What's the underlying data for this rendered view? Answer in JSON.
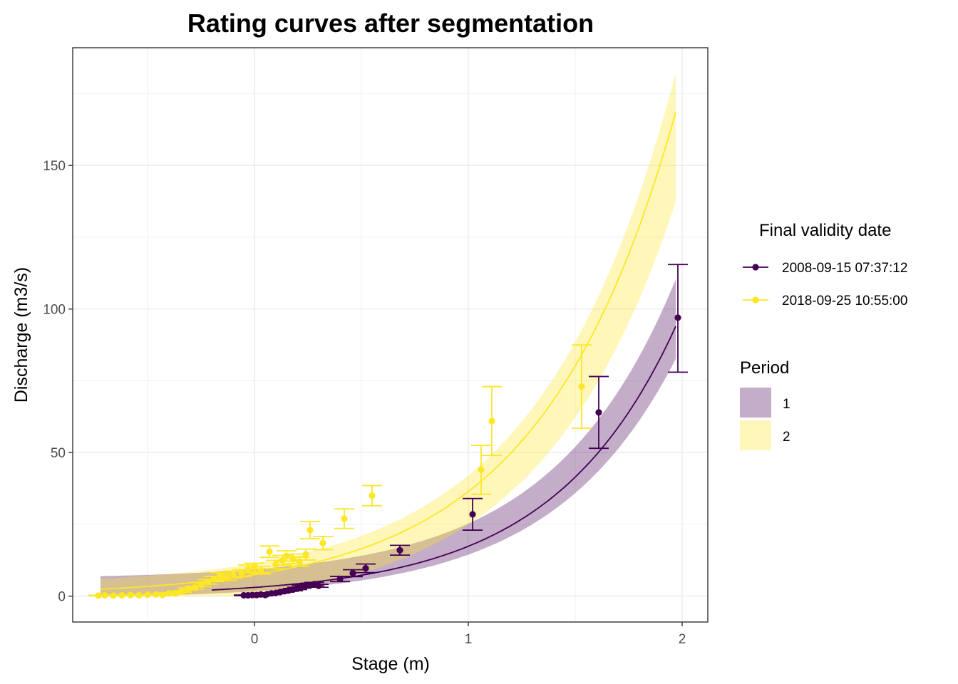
{
  "chart_data": {
    "type": "scatter",
    "title": "Rating curves after segmentation",
    "xlabel": "Stage (m)",
    "ylabel": "Discharge (m3/s)",
    "xlim": [
      -0.85,
      2.12
    ],
    "ylim": [
      -9,
      191
    ],
    "x_ticks": [
      0,
      1,
      2
    ],
    "x_tick_labels": [
      "0",
      "1",
      "2"
    ],
    "y_ticks": [
      0,
      50,
      100,
      150
    ],
    "y_tick_labels": [
      "0",
      "50",
      "100",
      "150"
    ],
    "grid": true,
    "legend_position": "right",
    "legend_colour_title": "Final validity date",
    "legend_fill_title": "Period",
    "series": [
      {
        "name": "2008-09-15 07:37:12",
        "period": "1",
        "color": "#440154",
        "band_fill": "#440154",
        "curve": {
          "type": "exponential",
          "a": 3.05,
          "b": 1.74,
          "x_start": -0.2,
          "x_end": 1.97
        },
        "band": {
          "lower_factor": 0.89,
          "upper_factor": 1.11,
          "plus_lower": -1.0,
          "plus_upper": 6.0,
          "x_start": -0.72,
          "x_end": 1.97
        },
        "points": [
          {
            "x": -0.05,
            "y": 0.3,
            "lo": 0.2,
            "hi": 0.4
          },
          {
            "x": -0.03,
            "y": 0.3,
            "lo": 0.2,
            "hi": 0.4
          },
          {
            "x": -0.01,
            "y": 0.4,
            "lo": 0.3,
            "hi": 0.5
          },
          {
            "x": 0.01,
            "y": 0.4,
            "lo": 0.3,
            "hi": 0.5
          },
          {
            "x": 0.03,
            "y": 0.6,
            "lo": 0.4,
            "hi": 0.8
          },
          {
            "x": 0.05,
            "y": 0.4,
            "lo": 0.3,
            "hi": 0.5
          },
          {
            "x": 0.06,
            "y": 0.7,
            "lo": 0.5,
            "hi": 0.9
          },
          {
            "x": 0.08,
            "y": 1.0,
            "lo": 0.8,
            "hi": 1.2
          },
          {
            "x": 0.1,
            "y": 1.1,
            "lo": 0.9,
            "hi": 1.3
          },
          {
            "x": 0.12,
            "y": 1.4,
            "lo": 1.1,
            "hi": 1.7
          },
          {
            "x": 0.14,
            "y": 1.7,
            "lo": 1.4,
            "hi": 2.0
          },
          {
            "x": 0.16,
            "y": 2.0,
            "lo": 1.7,
            "hi": 2.3
          },
          {
            "x": 0.18,
            "y": 2.3,
            "lo": 1.9,
            "hi": 2.7
          },
          {
            "x": 0.2,
            "y": 2.7,
            "lo": 2.3,
            "hi": 3.1
          },
          {
            "x": 0.22,
            "y": 3.3,
            "lo": 2.8,
            "hi": 3.8
          },
          {
            "x": 0.24,
            "y": 3.7,
            "lo": 3.2,
            "hi": 4.2
          },
          {
            "x": 0.26,
            "y": 3.9,
            "lo": 3.3,
            "hi": 4.5
          },
          {
            "x": 0.28,
            "y": 4.2,
            "lo": 3.6,
            "hi": 4.8
          },
          {
            "x": 0.3,
            "y": 3.6,
            "lo": 3.1,
            "hi": 4.1
          },
          {
            "x": 0.4,
            "y": 6.0,
            "lo": 5.1,
            "hi": 6.9
          },
          {
            "x": 0.46,
            "y": 8.0,
            "lo": 6.8,
            "hi": 9.2
          },
          {
            "x": 0.52,
            "y": 9.7,
            "lo": 8.2,
            "hi": 11.2
          },
          {
            "x": 0.68,
            "y": 16.0,
            "lo": 14.3,
            "hi": 17.7
          },
          {
            "x": 1.02,
            "y": 28.5,
            "lo": 23.0,
            "hi": 34.0
          },
          {
            "x": 1.61,
            "y": 64.0,
            "lo": 51.5,
            "hi": 76.5
          },
          {
            "x": 1.98,
            "y": 97.0,
            "lo": 78.0,
            "hi": 115.5
          }
        ]
      },
      {
        "name": "2018-09-25 10:55:00",
        "period": "2",
        "color": "#FDE725",
        "band_fill": "#FDE725",
        "curve": {
          "type": "exponential",
          "a": 7.5,
          "b": 1.58,
          "x_start": -0.72,
          "x_end": 1.97
        },
        "band": {
          "lower_factor": 0.85,
          "upper_factor": 1.06,
          "plus_lower": -6.0,
          "plus_upper": 3.5,
          "x_start": -0.72,
          "x_end": 1.97
        },
        "points": [
          {
            "x": -0.73,
            "y": 0.2,
            "lo": 0.1,
            "hi": 0.3
          },
          {
            "x": -0.7,
            "y": 0.3,
            "lo": 0.2,
            "hi": 0.4
          },
          {
            "x": -0.66,
            "y": 0.2,
            "lo": 0.1,
            "hi": 0.3
          },
          {
            "x": -0.62,
            "y": 0.3,
            "lo": 0.2,
            "hi": 0.4
          },
          {
            "x": -0.58,
            "y": 0.4,
            "lo": 0.3,
            "hi": 0.5
          },
          {
            "x": -0.54,
            "y": 0.3,
            "lo": 0.2,
            "hi": 0.4
          },
          {
            "x": -0.5,
            "y": 0.5,
            "lo": 0.4,
            "hi": 0.6
          },
          {
            "x": -0.46,
            "y": 0.6,
            "lo": 0.5,
            "hi": 0.7
          },
          {
            "x": -0.43,
            "y": 0.4,
            "lo": 0.3,
            "hi": 0.5
          },
          {
            "x": -0.4,
            "y": 1.0,
            "lo": 0.8,
            "hi": 1.2
          },
          {
            "x": -0.37,
            "y": 0.9,
            "lo": 0.7,
            "hi": 1.1
          },
          {
            "x": -0.34,
            "y": 1.6,
            "lo": 1.3,
            "hi": 1.9
          },
          {
            "x": -0.31,
            "y": 2.5,
            "lo": 2.1,
            "hi": 2.9
          },
          {
            "x": -0.28,
            "y": 3.0,
            "lo": 2.5,
            "hi": 3.5
          },
          {
            "x": -0.25,
            "y": 4.0,
            "lo": 3.4,
            "hi": 4.6
          },
          {
            "x": -0.22,
            "y": 5.0,
            "lo": 4.2,
            "hi": 5.8
          },
          {
            "x": -0.19,
            "y": 6.0,
            "lo": 5.1,
            "hi": 6.9
          },
          {
            "x": -0.16,
            "y": 7.0,
            "lo": 5.9,
            "hi": 8.1
          },
          {
            "x": -0.13,
            "y": 6.5,
            "lo": 5.5,
            "hi": 7.5
          },
          {
            "x": -0.1,
            "y": 7.5,
            "lo": 6.3,
            "hi": 8.7
          },
          {
            "x": -0.06,
            "y": 8.0,
            "lo": 6.8,
            "hi": 9.2
          },
          {
            "x": -0.03,
            "y": 9.5,
            "lo": 8.1,
            "hi": 10.9
          },
          {
            "x": 0.0,
            "y": 10.0,
            "lo": 8.5,
            "hi": 11.5
          },
          {
            "x": 0.03,
            "y": 9.0,
            "lo": 7.7,
            "hi": 10.3
          },
          {
            "x": 0.07,
            "y": 15.5,
            "lo": 13.5,
            "hi": 17.5
          },
          {
            "x": 0.1,
            "y": 11.0,
            "lo": 9.5,
            "hi": 12.5
          },
          {
            "x": 0.13,
            "y": 12.5,
            "lo": 10.8,
            "hi": 14.2
          },
          {
            "x": 0.15,
            "y": 14.0,
            "lo": 12.2,
            "hi": 15.8
          },
          {
            "x": 0.18,
            "y": 13.0,
            "lo": 11.3,
            "hi": 14.7
          },
          {
            "x": 0.21,
            "y": 12.0,
            "lo": 10.4,
            "hi": 13.6
          },
          {
            "x": 0.24,
            "y": 14.5,
            "lo": 12.6,
            "hi": 16.4
          },
          {
            "x": 0.26,
            "y": 23.0,
            "lo": 20.0,
            "hi": 26.0
          },
          {
            "x": 0.32,
            "y": 18.5,
            "lo": 16.2,
            "hi": 20.8
          },
          {
            "x": 0.42,
            "y": 27.0,
            "lo": 23.6,
            "hi": 30.4
          },
          {
            "x": 0.55,
            "y": 35.0,
            "lo": 31.5,
            "hi": 38.5
          },
          {
            "x": 1.06,
            "y": 44.0,
            "lo": 35.5,
            "hi": 52.5
          },
          {
            "x": 1.11,
            "y": 61.0,
            "lo": 49.0,
            "hi": 73.0
          },
          {
            "x": 1.53,
            "y": 73.0,
            "lo": 58.5,
            "hi": 87.5
          }
        ]
      }
    ]
  }
}
